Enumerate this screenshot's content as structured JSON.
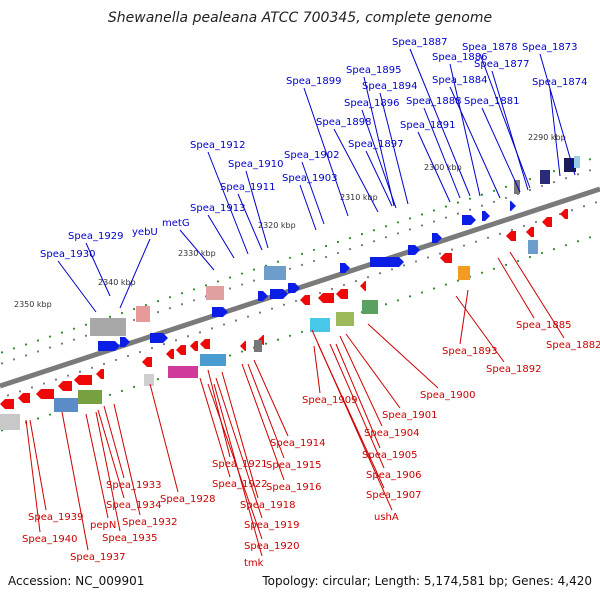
{
  "title": "Shewanella pealeana ATCC 700345, complete genome",
  "footer": {
    "accession": "Accession: NC_009901",
    "stats": "Topology: circular; Length: 5,174,581 bp; Genes: 4,420"
  },
  "colors": {
    "forward_label": "#0000cc",
    "reverse_label": "#cc0000",
    "backbone": "#808080",
    "tick": "#2e8b2e"
  },
  "ticks": [
    "2290 kbp",
    "2300 kbp",
    "2310 kbp",
    "2320 kbp",
    "2330 kbp",
    "2340 kbp",
    "2350 kbp"
  ],
  "forward_genes": [
    "Spea_1887",
    "Spea_1886",
    "Spea_1878",
    "Spea_1873",
    "Spea_1877",
    "Spea_1884",
    "Spea_1874",
    "Spea_1895",
    "Spea_1894",
    "Spea_1899",
    "Spea_1896",
    "Spea_1888",
    "Spea_1881",
    "Spea_1898",
    "Spea_1891",
    "Spea_1897",
    "Spea_1912",
    "Spea_1902",
    "Spea_1910",
    "Spea_1903",
    "Spea_1911",
    "Spea_1913",
    "metG",
    "yebU",
    "Spea_1929",
    "Spea_1930"
  ],
  "reverse_genes": [
    "Spea_1885",
    "Spea_1882",
    "Spea_1893",
    "Spea_1892",
    "Spea_1900",
    "Spea_1909",
    "Spea_1901",
    "Spea_1904",
    "Spea_1905",
    "Spea_1906",
    "Spea_1907",
    "ushA",
    "Spea_1914",
    "Spea_1915",
    "Spea_1916",
    "Spea_1921",
    "Spea_1922",
    "Spea_1918",
    "Spea_1919",
    "Spea_1920",
    "tmk",
    "Spea_1928",
    "Spea_1933",
    "Spea_1934",
    "Spea_1932",
    "Spea_1935",
    "pepN",
    "Spea_1937",
    "Spea_1939",
    "Spea_1940"
  ]
}
